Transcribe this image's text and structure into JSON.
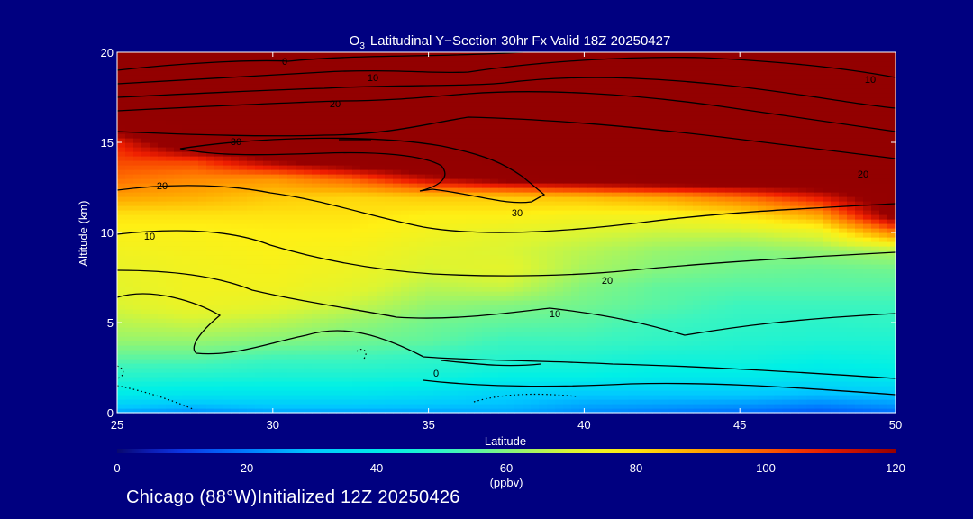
{
  "chart_data": {
    "type": "heatmap",
    "title": {
      "species_main": "O",
      "species_sub": "3",
      "rest": "Latitudinal Y−Section 30hr  Fx Valid 18Z 20250427"
    },
    "xlabel": "Latitude",
    "ylabel": "Altitude (km)",
    "xlim": [
      25,
      50
    ],
    "ylim": [
      0,
      20
    ],
    "xticks": [
      25,
      30,
      35,
      40,
      45,
      50
    ],
    "yticks": [
      0,
      5,
      10,
      15,
      20
    ],
    "x": [
      25,
      27.5,
      30,
      32.5,
      35,
      37.5,
      40,
      42.5,
      45,
      47.5,
      50
    ],
    "y": [
      0,
      1,
      2,
      3,
      4,
      5,
      6,
      7,
      8,
      9,
      10,
      11,
      12,
      13,
      14,
      15,
      16,
      17,
      18,
      19,
      20
    ],
    "values": [
      [
        25,
        22,
        25,
        25,
        25,
        26,
        22,
        20,
        18,
        15,
        18
      ],
      [
        40,
        38,
        38,
        38,
        36,
        32,
        30,
        30,
        30,
        28,
        30
      ],
      [
        48,
        47,
        46,
        46,
        45,
        42,
        42,
        40,
        40,
        38,
        40
      ],
      [
        55,
        55,
        52,
        52,
        50,
        48,
        47,
        45,
        45,
        43,
        44
      ],
      [
        62,
        62,
        60,
        58,
        56,
        52,
        52,
        50,
        48,
        47,
        47
      ],
      [
        66,
        68,
        66,
        62,
        58,
        56,
        55,
        52,
        50,
        49,
        50
      ],
      [
        70,
        74,
        72,
        68,
        62,
        60,
        58,
        55,
        52,
        52,
        52
      ],
      [
        72,
        75,
        75,
        72,
        66,
        68,
        60,
        56,
        55,
        55,
        55
      ],
      [
        73,
        75,
        76,
        74,
        70,
        72,
        64,
        60,
        58,
        57,
        58
      ],
      [
        75,
        76,
        77,
        76,
        72,
        70,
        66,
        62,
        60,
        62,
        65
      ],
      [
        77,
        77,
        78,
        78,
        75,
        72,
        70,
        68,
        68,
        72,
        95
      ],
      [
        80,
        80,
        80,
        80,
        78,
        78,
        76,
        76,
        80,
        90,
        125
      ],
      [
        90,
        88,
        84,
        82,
        84,
        84,
        86,
        90,
        98,
        110,
        130
      ],
      [
        98,
        94,
        92,
        100,
        115,
        125,
        130,
        135,
        135,
        135,
        135
      ],
      [
        103,
        104,
        120,
        130,
        135,
        135,
        135,
        135,
        135,
        135,
        135
      ],
      [
        108,
        135,
        135,
        135,
        135,
        135,
        135,
        135,
        135,
        135,
        135
      ],
      [
        130,
        135,
        135,
        135,
        135,
        135,
        135,
        135,
        135,
        135,
        135
      ],
      [
        135,
        135,
        135,
        135,
        135,
        135,
        135,
        135,
        135,
        135,
        135
      ],
      [
        135,
        135,
        135,
        135,
        135,
        135,
        135,
        135,
        135,
        135,
        135
      ],
      [
        135,
        135,
        135,
        135,
        135,
        135,
        135,
        135,
        135,
        135,
        135
      ],
      [
        135,
        135,
        135,
        135,
        135,
        135,
        135,
        135,
        135,
        135,
        135
      ]
    ],
    "contour_labels": [
      "0",
      "10",
      "20",
      "30",
      "20",
      "10",
      "30",
      "20",
      "10",
      "20",
      "10",
      "0"
    ],
    "colorbar": {
      "ticks": [
        "0",
        "20",
        "40",
        "60",
        "80",
        "100",
        "120"
      ],
      "range": [
        0,
        120
      ],
      "units": "(ppbv)"
    },
    "grid": false
  },
  "footer": "Chicago (88°W)Initialized 12Z 20250426",
  "colors": {
    "background": "#000080",
    "contour": "#000000",
    "text": "#ffffff"
  }
}
